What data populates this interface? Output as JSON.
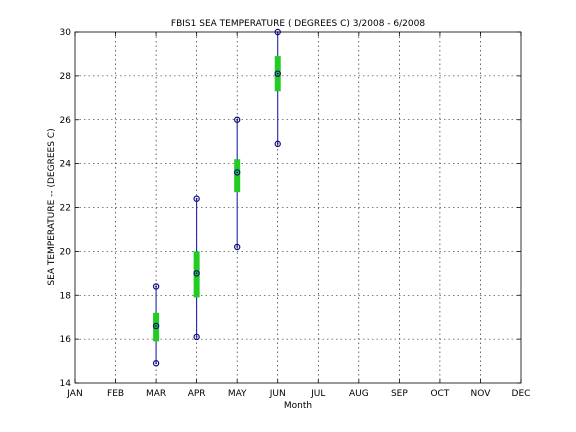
{
  "chart_data": {
    "type": "box",
    "title": "FBIS1  SEA TEMPERATURE ( DEGREES C) 3/2008 - 6/2008",
    "xlabel": "Month",
    "ylabel": "SEA TEMPERATURE -- (DEGREES C)",
    "categories": [
      "JAN",
      "FEB",
      "MAR",
      "APR",
      "MAY",
      "JUN",
      "JUL",
      "AUG",
      "SEP",
      "OCT",
      "NOV",
      "DEC"
    ],
    "ylim": [
      14,
      30
    ],
    "yticks": [
      "14",
      "16",
      "18",
      "20",
      "22",
      "24",
      "26",
      "28",
      "30"
    ],
    "grid": true,
    "colors": {
      "whisker": "#1010a0",
      "box": "#22cc22",
      "marker": "#0a0a80"
    },
    "boxes": [
      {
        "month": "MAR",
        "min": 14.9,
        "q1": 15.9,
        "median": 16.6,
        "q3": 17.2,
        "max": 18.4
      },
      {
        "month": "APR",
        "min": 16.1,
        "q1": 17.9,
        "median": 19.0,
        "q3": 20.0,
        "max": 22.4
      },
      {
        "month": "MAY",
        "min": 20.2,
        "q1": 22.7,
        "median": 23.6,
        "q3": 24.2,
        "max": 26.0
      },
      {
        "month": "JUN",
        "min": 24.9,
        "q1": 27.3,
        "median": 28.1,
        "q3": 28.9,
        "max": 30.0
      }
    ]
  }
}
